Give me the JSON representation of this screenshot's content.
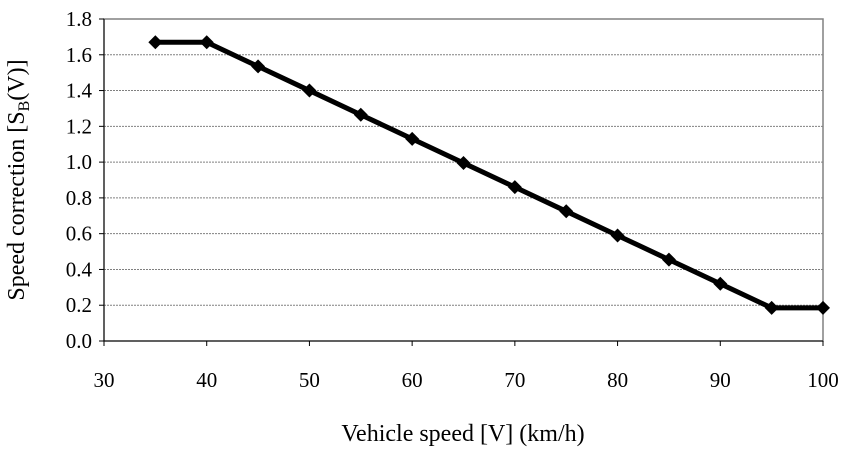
{
  "chart_data": {
    "type": "line",
    "title": "",
    "xlabel": "Vehicle speed [V] (km/h)",
    "ylabel_main": "Speed correction [S",
    "ylabel_sub": "B",
    "ylabel_tail": "(V)]",
    "xlim": [
      30,
      100
    ],
    "ylim": [
      0.0,
      1.8
    ],
    "xticks": [
      "30",
      "40",
      "50",
      "60",
      "70",
      "80",
      "90",
      "100"
    ],
    "yticks": [
      "0.0",
      "0.2",
      "0.4",
      "0.6",
      "0.8",
      "1.0",
      "1.2",
      "1.4",
      "1.6",
      "1.8"
    ],
    "grid": true,
    "legend": false,
    "series": [
      {
        "marker": "diamond",
        "color": "#000000",
        "points": [
          {
            "x": 35,
            "y": 1.67
          },
          {
            "x": 40,
            "y": 1.67
          },
          {
            "x": 45,
            "y": 1.535
          },
          {
            "x": 50,
            "y": 1.4
          },
          {
            "x": 55,
            "y": 1.265
          },
          {
            "x": 60,
            "y": 1.13
          },
          {
            "x": 65,
            "y": 0.995
          },
          {
            "x": 70,
            "y": 0.86
          },
          {
            "x": 75,
            "y": 0.725
          },
          {
            "x": 80,
            "y": 0.59
          },
          {
            "x": 85,
            "y": 0.455
          },
          {
            "x": 90,
            "y": 0.32
          },
          {
            "x": 95,
            "y": 0.185
          },
          {
            "x": 100,
            "y": 0.185
          }
        ]
      }
    ]
  }
}
